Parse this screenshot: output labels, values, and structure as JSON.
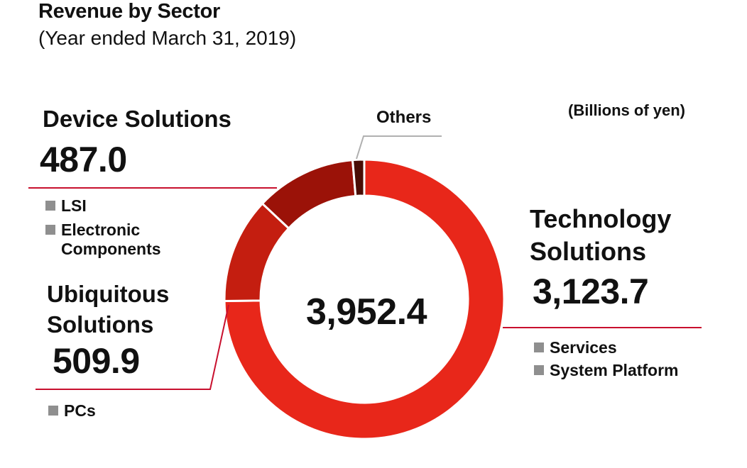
{
  "chart_data": {
    "type": "pie",
    "style": "donut",
    "title": "Revenue by Sector",
    "subtitle": "(Year ended March 31, 2019)",
    "units": "(Billions of yen)",
    "total": 3952.4,
    "total_label": "3,952.4",
    "series": [
      {
        "name": "Technology Solutions",
        "name_lines": [
          "Technology",
          "Solutions"
        ],
        "value": 3123.7,
        "value_label": "3,123.7",
        "color": "#e8271a",
        "sub_items": [
          "Services",
          "System Platform"
        ]
      },
      {
        "name": "Ubiquitous Solutions",
        "name_lines": [
          "Ubiquitous",
          "Solutions"
        ],
        "value": 509.9,
        "value_label": "509.9",
        "color": "#c41e10",
        "sub_items": [
          "PCs"
        ]
      },
      {
        "name": "Device Solutions",
        "name_lines": [
          "Device Solutions"
        ],
        "value": 487.0,
        "value_label": "487.0",
        "color": "#9b1208",
        "sub_items": [
          "LSI",
          "Electronic Components"
        ],
        "sub_item_lines": [
          [
            "LSI"
          ],
          [
            "Electronic",
            "Components"
          ]
        ]
      },
      {
        "name": "Others",
        "value": 55.6,
        "color": "#4a0d05"
      }
    ],
    "colors": {
      "leader_red": "#c8102e",
      "leader_gray": "#b0b0b0",
      "legend_square": "#8f8f8f"
    }
  }
}
